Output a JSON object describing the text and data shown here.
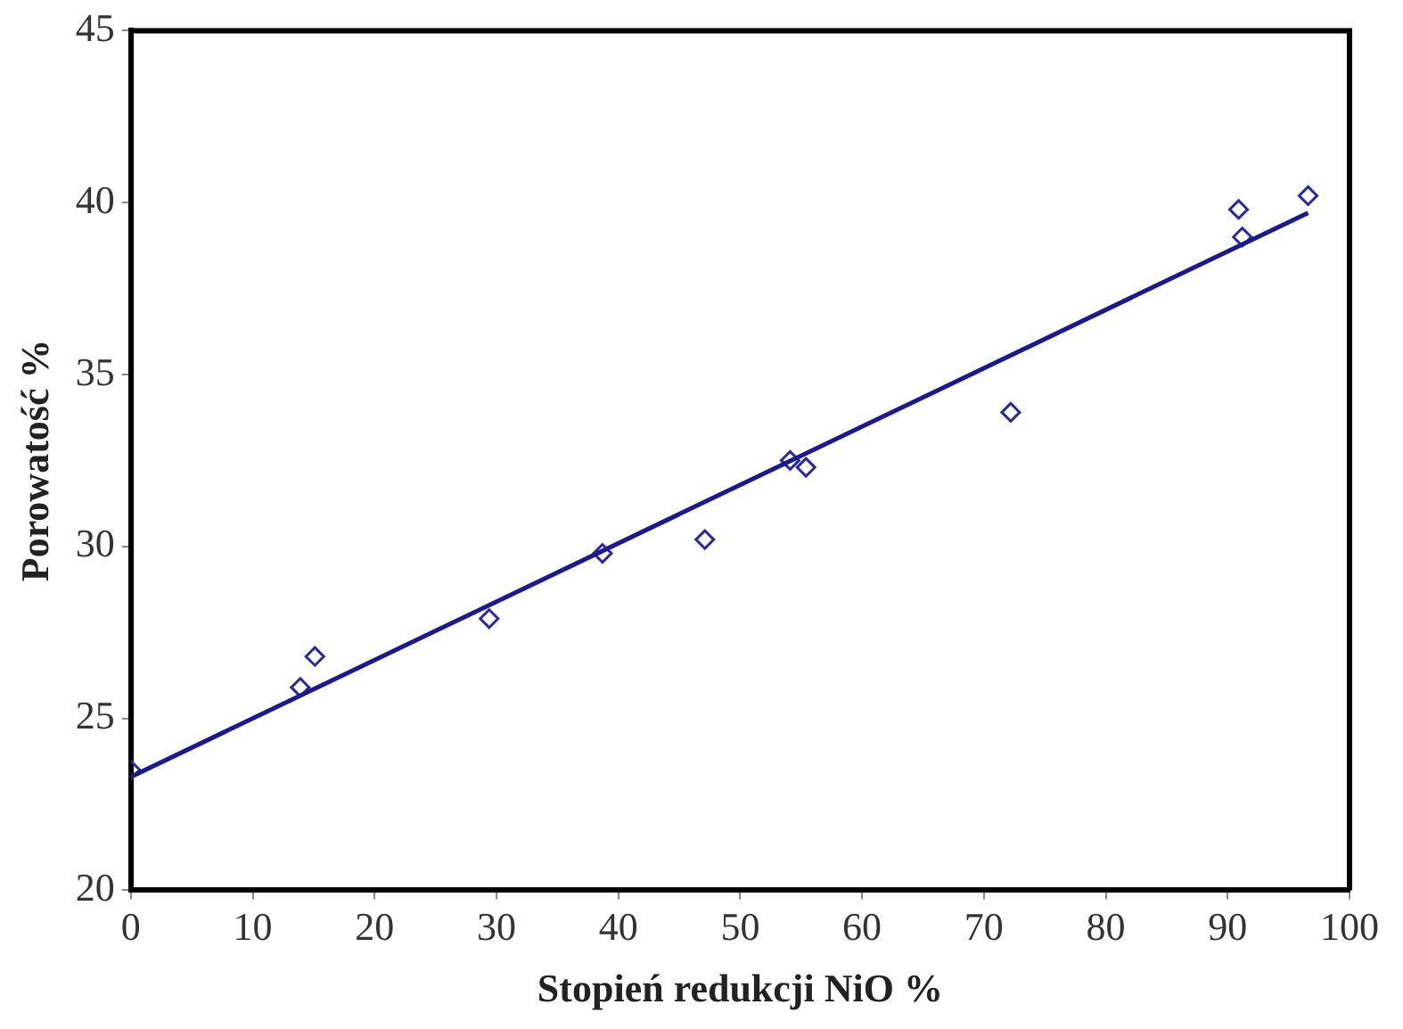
{
  "chart_data": {
    "type": "scatter",
    "xlabel": "Stopień redukcji NiO %",
    "ylabel": "Porowatość %",
    "xlim": [
      0,
      100
    ],
    "xticks": [
      0,
      10,
      20,
      30,
      40,
      50,
      60,
      70,
      80,
      90,
      100
    ],
    "ylim": [
      20,
      45
    ],
    "yticks": [
      20,
      25,
      30,
      35,
      40,
      45
    ],
    "grid": false,
    "legend": false,
    "marker": "diamond",
    "series": [
      {
        "color": "#2a2a9a",
        "x": [
          0,
          13.9,
          15.1,
          29.4,
          38.7,
          47.1,
          54.1,
          55.4,
          72.2,
          90.9,
          91.2,
          96.6
        ],
        "values": [
          23.5,
          25.9,
          26.8,
          27.9,
          29.8,
          30.2,
          32.5,
          32.3,
          33.9,
          39.8,
          39.0,
          40.2
        ]
      },
      {
        "type": "line",
        "marker": "none",
        "color": "#1a1a8c",
        "x": [
          0,
          96.6
        ],
        "values": [
          23.3,
          39.7
        ]
      }
    ]
  }
}
